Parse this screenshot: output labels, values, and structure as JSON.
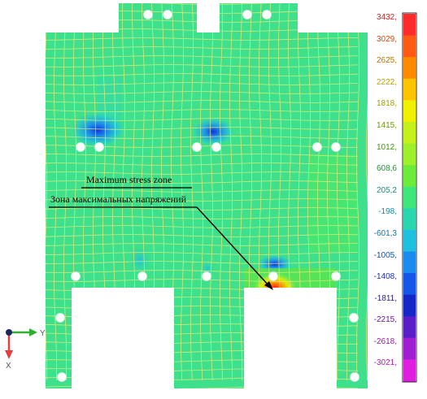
{
  "annotation": {
    "label_en": "Maximum stress zone",
    "label_ru": "Зона максимальных напряжений"
  },
  "axes": {
    "y_label": "Y",
    "x_label": "X"
  },
  "color_scale": {
    "labels": [
      "3432,",
      "3029,",
      "2625,",
      "2222,",
      "1818,",
      "1415,",
      "1012,",
      "608,6",
      "205,2",
      "-198,",
      "-601,3",
      "-1005,",
      "-1408,",
      "-1811,",
      "-2215,",
      "-2618,",
      "-3021,"
    ],
    "colors": [
      "#ff2a2a",
      "#ff5a14",
      "#ff8a00",
      "#ffc400",
      "#f0f000",
      "#c6f01a",
      "#9ef02a",
      "#6cec3a",
      "#3ce87a",
      "#2ad6b0",
      "#1ec0e0",
      "#1a8cf0",
      "#1456e8",
      "#1428c8",
      "#5a1ec8",
      "#a01ed0",
      "#e01ee0"
    ],
    "label_colors": [
      "#d02020",
      "#d04a10",
      "#c07000",
      "#c0a000",
      "#a0a000",
      "#6a9a00",
      "#3a9a00",
      "#1a9a2a",
      "#14907a",
      "#108aa0",
      "#1070b0",
      "#1050b8",
      "#1a30b0",
      "#2a2090",
      "#6a1a9a",
      "#9a1aa0",
      "#b01ab0"
    ]
  },
  "colors": {
    "plate": "#3fe08c",
    "mesh": "#e6ec7a",
    "hole": "#ffffff",
    "y_axis": "#30b030",
    "x_axis": "#e04040",
    "origin": "#1a2a5a"
  }
}
